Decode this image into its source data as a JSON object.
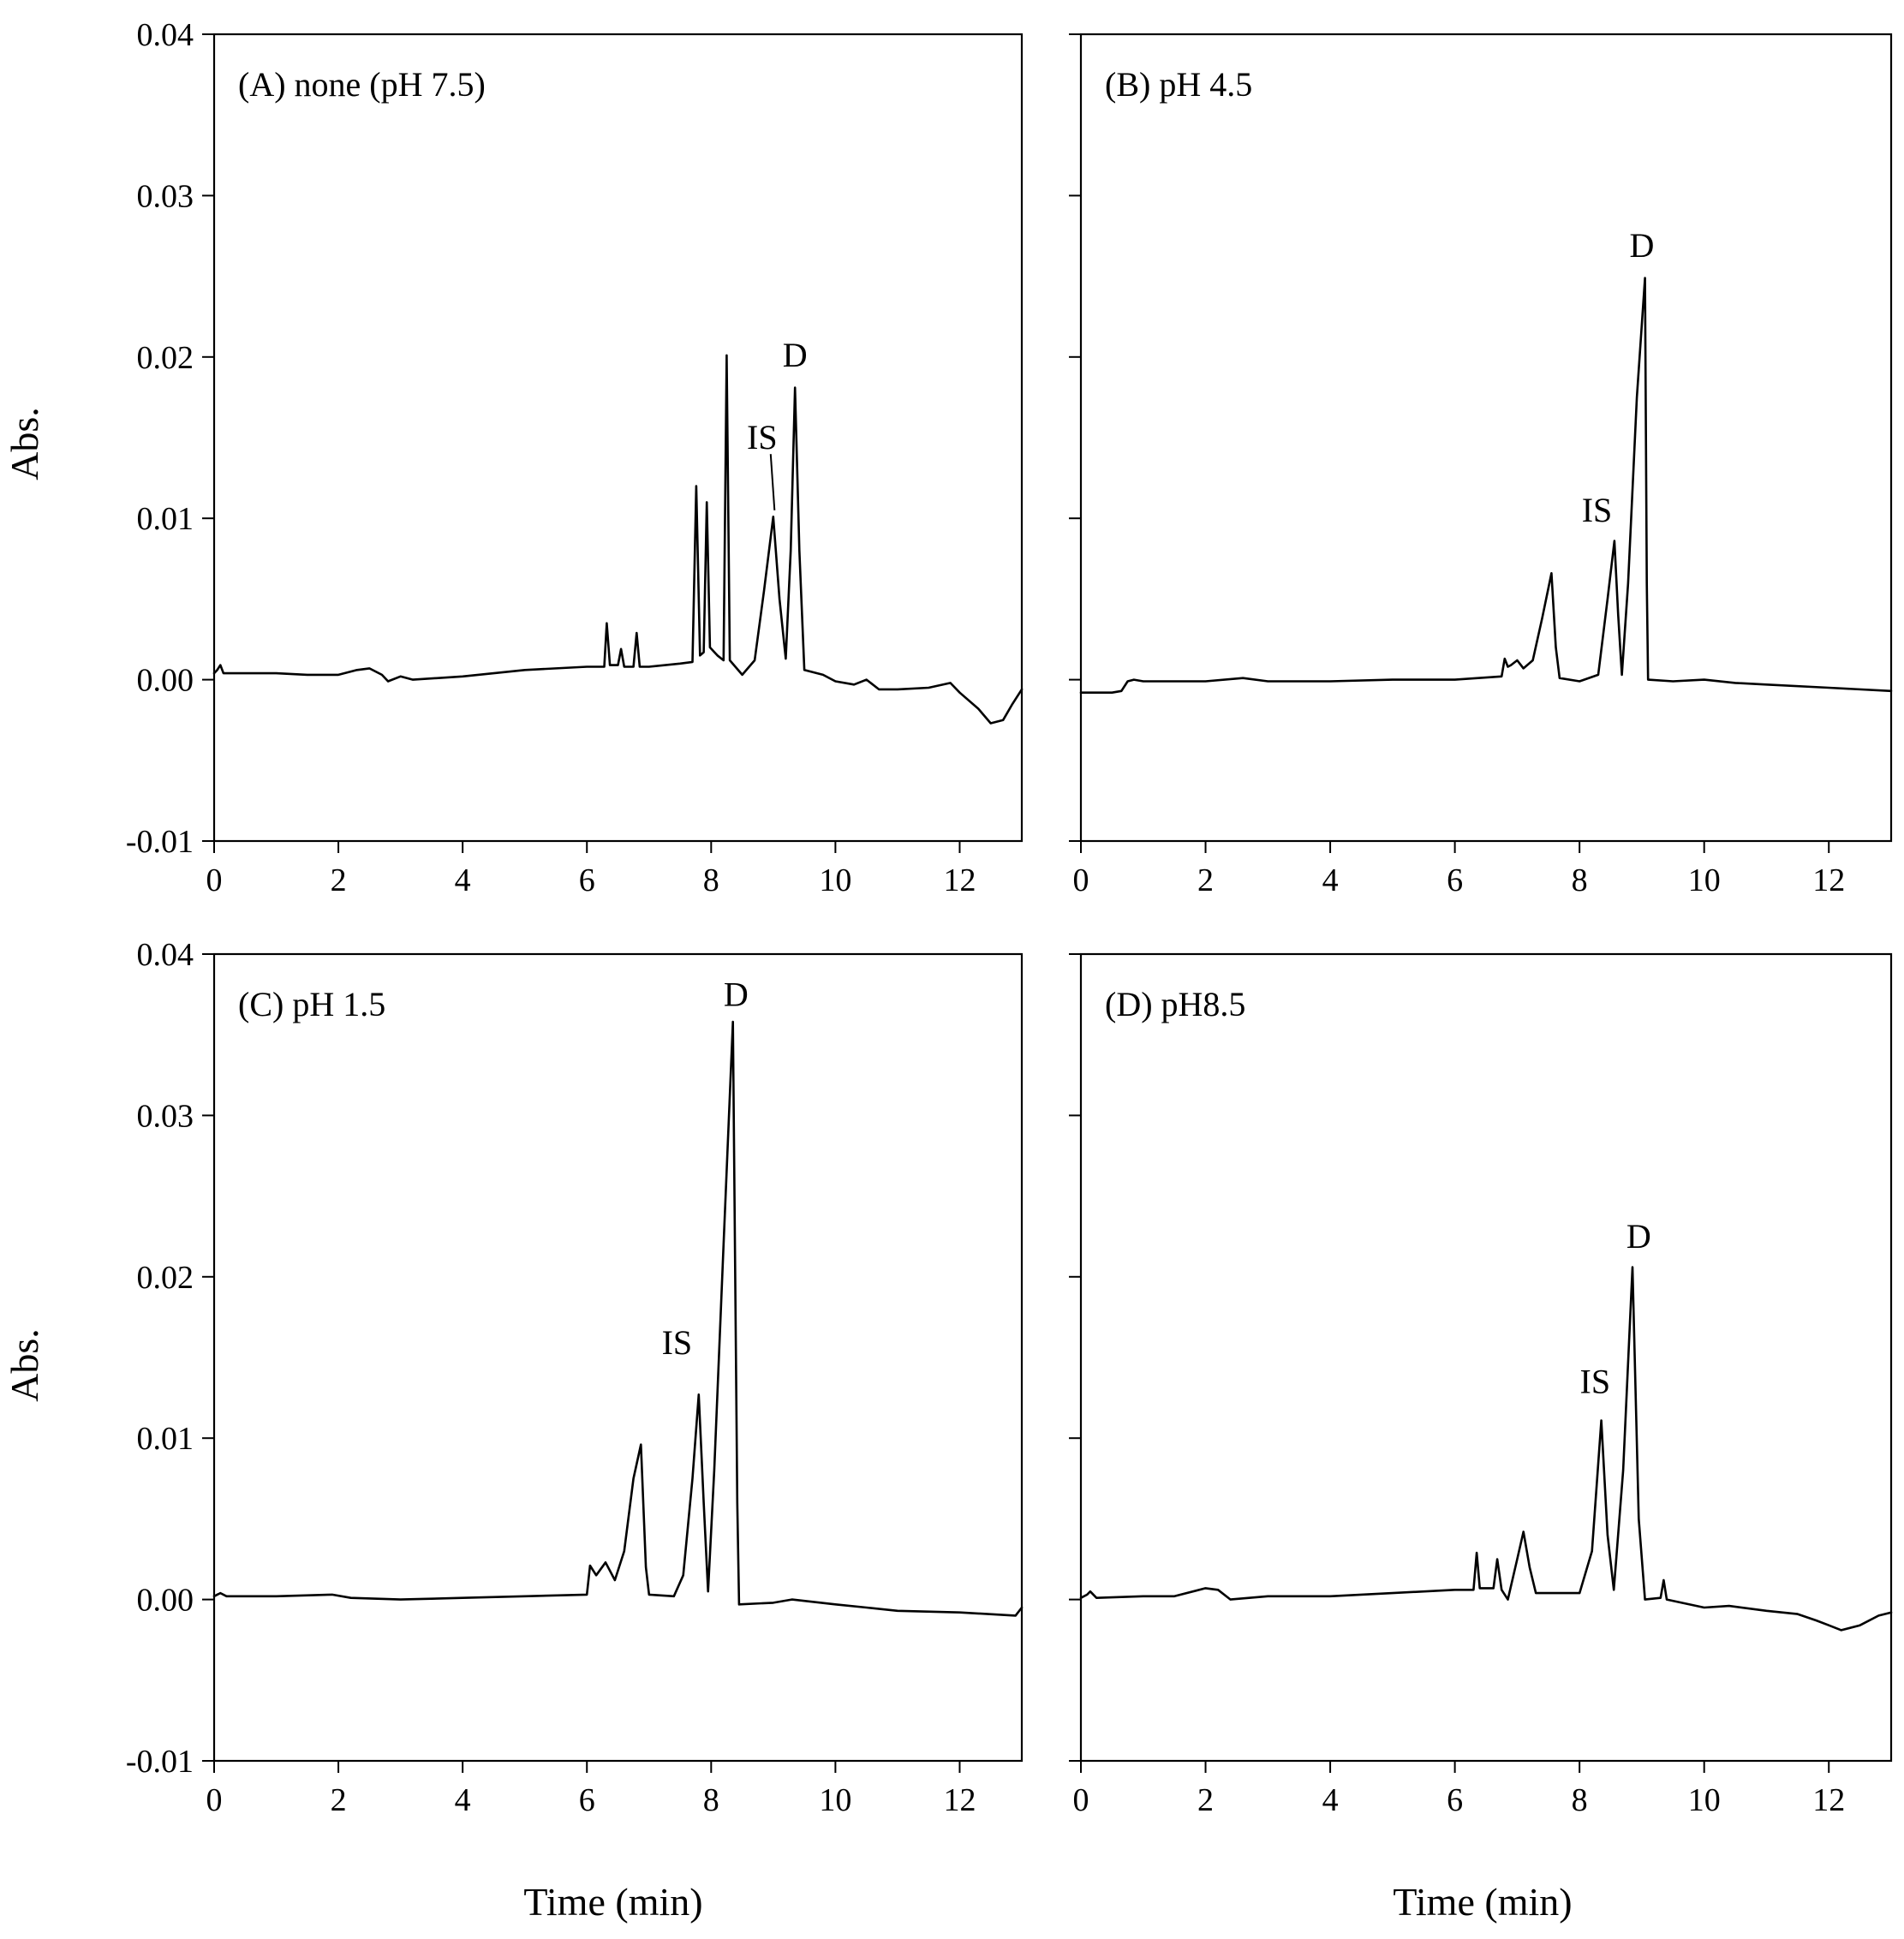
{
  "figure": {
    "ylabel": "Abs.",
    "xlabel": "Time (min)"
  },
  "chart_data": [
    {
      "type": "line",
      "panel_label": "(A) none (pH 7.5)",
      "xlim": [
        0,
        13
      ],
      "ylim": [
        -0.01,
        0.04
      ],
      "x_ticks": [
        0,
        2,
        4,
        6,
        8,
        10,
        12
      ],
      "y_ticks": [
        -0.01,
        0.0,
        0.01,
        0.02,
        0.03,
        0.04
      ],
      "x_tick_labels": [
        "0",
        "2",
        "4",
        "6",
        "8",
        "10",
        "12"
      ],
      "y_tick_labels": [
        "-0.01",
        "0.00",
        "0.01",
        "0.02",
        "0.03",
        "0.04"
      ],
      "grid": false,
      "series": [
        {
          "points": [
            [
              0.0,
              0.0004
            ],
            [
              0.05,
              0.0006
            ],
            [
              0.1,
              0.0009
            ],
            [
              0.15,
              0.0004
            ],
            [
              0.5,
              0.0004
            ],
            [
              1.0,
              0.0004
            ],
            [
              1.5,
              0.0003
            ],
            [
              2.0,
              0.0003
            ],
            [
              2.3,
              0.0006
            ],
            [
              2.5,
              0.0007
            ],
            [
              2.7,
              0.0003
            ],
            [
              2.8,
              -0.0001
            ],
            [
              3.0,
              0.0002
            ],
            [
              3.2,
              0.0
            ],
            [
              4.0,
              0.0002
            ],
            [
              5.0,
              0.0006
            ],
            [
              6.0,
              0.0008
            ],
            [
              6.28,
              0.0008
            ],
            [
              6.32,
              0.0035
            ],
            [
              6.37,
              0.0009
            ],
            [
              6.5,
              0.0009
            ],
            [
              6.55,
              0.0019
            ],
            [
              6.6,
              0.0008
            ],
            [
              6.75,
              0.0008
            ],
            [
              6.8,
              0.0029
            ],
            [
              6.85,
              0.0008
            ],
            [
              7.0,
              0.0008
            ],
            [
              7.5,
              0.001
            ],
            [
              7.7,
              0.0011
            ],
            [
              7.76,
              0.012
            ],
            [
              7.82,
              0.0015
            ],
            [
              7.88,
              0.0017
            ],
            [
              7.93,
              0.011
            ],
            [
              7.98,
              0.002
            ],
            [
              8.1,
              0.0015
            ],
            [
              8.2,
              0.0012
            ],
            [
              8.25,
              0.0201
            ],
            [
              8.3,
              0.0012
            ],
            [
              8.5,
              0.0003
            ],
            [
              8.7,
              0.0012
            ],
            [
              8.85,
              0.0055
            ],
            [
              9.0,
              0.0101
            ],
            [
              9.1,
              0.005
            ],
            [
              9.2,
              0.0013
            ],
            [
              9.28,
              0.008
            ],
            [
              9.35,
              0.0181
            ],
            [
              9.42,
              0.008
            ],
            [
              9.5,
              0.0006
            ],
            [
              9.8,
              0.0003
            ],
            [
              10.0,
              -0.0001
            ],
            [
              10.3,
              -0.0003
            ],
            [
              10.5,
              0.0
            ],
            [
              10.7,
              -0.0006
            ],
            [
              11.0,
              -0.0006
            ],
            [
              11.5,
              -0.0005
            ],
            [
              11.85,
              -0.0002
            ],
            [
              12.0,
              -0.0008
            ],
            [
              12.3,
              -0.0018
            ],
            [
              12.5,
              -0.0027
            ],
            [
              12.7,
              -0.0025
            ],
            [
              12.85,
              -0.0015
            ],
            [
              13.0,
              -0.0006
            ]
          ]
        }
      ],
      "annotations": [
        {
          "text": "IS",
          "x": 8.82,
          "y": 0.0143,
          "arrow_to": [
            9.02,
            0.0105
          ]
        },
        {
          "text": "D",
          "x": 9.35,
          "y": 0.0194
        }
      ]
    },
    {
      "type": "line",
      "panel_label": "(B) pH 4.5",
      "xlim": [
        0,
        13
      ],
      "ylim": [
        -0.01,
        0.04
      ],
      "x_ticks": [
        0,
        2,
        4,
        6,
        8,
        10,
        12
      ],
      "y_ticks": [
        -0.01,
        0.0,
        0.01,
        0.02,
        0.03,
        0.04
      ],
      "x_tick_labels": [
        "0",
        "2",
        "4",
        "6",
        "8",
        "10",
        "12"
      ],
      "y_tick_labels": [
        "",
        "",
        "",
        "",
        "",
        ""
      ],
      "grid": false,
      "series": [
        {
          "points": [
            [
              0.0,
              -0.0008
            ],
            [
              0.5,
              -0.0008
            ],
            [
              0.65,
              -0.0007
            ],
            [
              0.75,
              -0.0001
            ],
            [
              0.85,
              0.0
            ],
            [
              1.0,
              -0.0001
            ],
            [
              2.0,
              -0.0001
            ],
            [
              2.6,
              0.0001
            ],
            [
              3.0,
              -0.0001
            ],
            [
              4.0,
              -0.0001
            ],
            [
              5.0,
              0.0
            ],
            [
              6.0,
              0.0
            ],
            [
              6.75,
              0.0002
            ],
            [
              6.8,
              0.0013
            ],
            [
              6.85,
              0.0008
            ],
            [
              6.9,
              0.0009
            ],
            [
              7.0,
              0.0012
            ],
            [
              7.1,
              0.0007
            ],
            [
              7.25,
              0.0012
            ],
            [
              7.4,
              0.0038
            ],
            [
              7.55,
              0.0066
            ],
            [
              7.62,
              0.002
            ],
            [
              7.68,
              0.0001
            ],
            [
              8.0,
              -0.0001
            ],
            [
              8.3,
              0.0003
            ],
            [
              8.45,
              0.005
            ],
            [
              8.56,
              0.0086
            ],
            [
              8.62,
              0.004
            ],
            [
              8.68,
              0.0003
            ],
            [
              8.78,
              0.006
            ],
            [
              8.92,
              0.0175
            ],
            [
              9.05,
              0.0249
            ],
            [
              9.08,
              0.006
            ],
            [
              9.1,
              0.0
            ],
            [
              9.5,
              -0.0001
            ],
            [
              10.0,
              0.0
            ],
            [
              10.5,
              -0.0002
            ],
            [
              11.0,
              -0.0003
            ],
            [
              12.0,
              -0.0005
            ],
            [
              13.0,
              -0.0007
            ]
          ]
        }
      ],
      "annotations": [
        {
          "text": "IS",
          "x": 8.28,
          "y": 0.0098
        },
        {
          "text": "D",
          "x": 9.0,
          "y": 0.0262
        }
      ]
    },
    {
      "type": "line",
      "panel_label": "(C) pH 1.5",
      "xlim": [
        0,
        13
      ],
      "ylim": [
        -0.01,
        0.04
      ],
      "x_ticks": [
        0,
        2,
        4,
        6,
        8,
        10,
        12
      ],
      "y_ticks": [
        -0.01,
        0.0,
        0.01,
        0.02,
        0.03,
        0.04
      ],
      "x_tick_labels": [
        "0",
        "2",
        "4",
        "6",
        "8",
        "10",
        "12"
      ],
      "y_tick_labels": [
        "-0.01",
        "0.00",
        "0.01",
        "0.02",
        "0.03",
        "0.04"
      ],
      "grid": false,
      "series": [
        {
          "points": [
            [
              0.0,
              0.0002
            ],
            [
              0.1,
              0.0004
            ],
            [
              0.2,
              0.0002
            ],
            [
              1.0,
              0.0002
            ],
            [
              1.9,
              0.0003
            ],
            [
              2.2,
              0.0001
            ],
            [
              3.0,
              0.0
            ],
            [
              4.0,
              0.0001
            ],
            [
              5.0,
              0.0002
            ],
            [
              6.0,
              0.0003
            ],
            [
              6.05,
              0.0021
            ],
            [
              6.15,
              0.0015
            ],
            [
              6.3,
              0.0023
            ],
            [
              6.45,
              0.0012
            ],
            [
              6.6,
              0.003
            ],
            [
              6.75,
              0.0075
            ],
            [
              6.87,
              0.0096
            ],
            [
              6.95,
              0.002
            ],
            [
              7.0,
              0.0003
            ],
            [
              7.4,
              0.0002
            ],
            [
              7.55,
              0.0015
            ],
            [
              7.7,
              0.0075
            ],
            [
              7.8,
              0.0127
            ],
            [
              7.88,
              0.006
            ],
            [
              7.95,
              0.0005
            ],
            [
              8.05,
              0.008
            ],
            [
              8.2,
              0.022
            ],
            [
              8.35,
              0.0358
            ],
            [
              8.42,
              0.006
            ],
            [
              8.45,
              -0.0003
            ],
            [
              9.0,
              -0.0002
            ],
            [
              9.3,
              0.0
            ],
            [
              10.0,
              -0.0003
            ],
            [
              10.5,
              -0.0005
            ],
            [
              11.0,
              -0.0007
            ],
            [
              12.0,
              -0.0008
            ],
            [
              12.9,
              -0.001
            ],
            [
              13.0,
              -0.0005
            ]
          ]
        }
      ],
      "annotations": [
        {
          "text": "IS",
          "x": 7.45,
          "y": 0.0152
        },
        {
          "text": "D",
          "x": 8.4,
          "y": 0.0368
        }
      ]
    },
    {
      "type": "line",
      "panel_label": "(D) pH8.5",
      "xlim": [
        0,
        13
      ],
      "ylim": [
        -0.01,
        0.04
      ],
      "x_ticks": [
        0,
        2,
        4,
        6,
        8,
        10,
        12
      ],
      "y_ticks": [
        -0.01,
        0.0,
        0.01,
        0.02,
        0.03,
        0.04
      ],
      "x_tick_labels": [
        "0",
        "2",
        "4",
        "6",
        "8",
        "10",
        "12"
      ],
      "y_tick_labels": [
        "",
        "",
        "",
        "",
        "",
        ""
      ],
      "grid": false,
      "series": [
        {
          "points": [
            [
              0.0,
              0.0001
            ],
            [
              0.1,
              0.0003
            ],
            [
              0.15,
              0.0005
            ],
            [
              0.25,
              0.0001
            ],
            [
              1.0,
              0.0002
            ],
            [
              1.5,
              0.0002
            ],
            [
              2.0,
              0.0007
            ],
            [
              2.2,
              0.0006
            ],
            [
              2.4,
              0.0
            ],
            [
              3.0,
              0.0002
            ],
            [
              4.0,
              0.0002
            ],
            [
              5.0,
              0.0004
            ],
            [
              6.0,
              0.0006
            ],
            [
              6.3,
              0.0006
            ],
            [
              6.35,
              0.0029
            ],
            [
              6.4,
              0.0007
            ],
            [
              6.62,
              0.0007
            ],
            [
              6.68,
              0.0025
            ],
            [
              6.75,
              0.0006
            ],
            [
              6.85,
              0.0
            ],
            [
              7.0,
              0.0025
            ],
            [
              7.1,
              0.0042
            ],
            [
              7.2,
              0.002
            ],
            [
              7.3,
              0.0004
            ],
            [
              8.0,
              0.0004
            ],
            [
              8.2,
              0.003
            ],
            [
              8.35,
              0.0111
            ],
            [
              8.45,
              0.004
            ],
            [
              8.55,
              0.0006
            ],
            [
              8.7,
              0.008
            ],
            [
              8.85,
              0.0206
            ],
            [
              8.95,
              0.005
            ],
            [
              9.05,
              0.0
            ],
            [
              9.3,
              0.0001
            ],
            [
              9.35,
              0.0012
            ],
            [
              9.4,
              0.0
            ],
            [
              10.0,
              -0.0005
            ],
            [
              10.4,
              -0.0004
            ],
            [
              11.0,
              -0.0007
            ],
            [
              11.5,
              -0.0009
            ],
            [
              11.8,
              -0.0013
            ],
            [
              12.0,
              -0.0016
            ],
            [
              12.2,
              -0.0019
            ],
            [
              12.5,
              -0.0016
            ],
            [
              12.8,
              -0.001
            ],
            [
              13.0,
              -0.0008
            ]
          ]
        }
      ],
      "annotations": [
        {
          "text": "IS",
          "x": 8.25,
          "y": 0.0128
        },
        {
          "text": "D",
          "x": 8.95,
          "y": 0.0218
        }
      ]
    }
  ]
}
